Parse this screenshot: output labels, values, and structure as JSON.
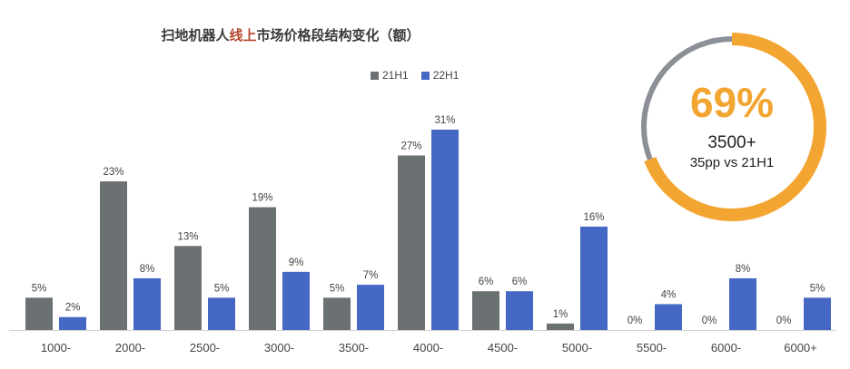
{
  "title_pre": "扫地机器人",
  "title_hl": "线上",
  "title_post": "市场价格段结构变化（额）",
  "colors": {
    "s21": "#6b7173",
    "s22": "#4468c4",
    "accent": "#f3a531",
    "ring_bg": "#8b9097",
    "title_hl": "#b5472b"
  },
  "callout": {
    "percent": "69%",
    "line1": "3500+",
    "line2": "35pp vs 21H1",
    "fraction": 0.69
  },
  "chart_data": {
    "type": "bar",
    "categories": [
      "1000-",
      "2000-",
      "2500-",
      "3000-",
      "3500-",
      "4000-",
      "4500-",
      "5000-",
      "5500-",
      "6000-",
      "6000+"
    ],
    "series": [
      {
        "name": "21H1",
        "values": [
          5,
          23,
          13,
          19,
          5,
          27,
          6,
          1,
          0,
          0,
          0
        ]
      },
      {
        "name": "22H1",
        "values": [
          2,
          8,
          5,
          9,
          7,
          31,
          6,
          16,
          4,
          8,
          5
        ]
      }
    ],
    "labels_21": [
      "5%",
      "23%",
      "13%",
      "19%",
      "5%",
      "27%",
      "6%",
      "1%",
      "0%",
      "0%",
      "0%"
    ],
    "labels_22": [
      "2%",
      "8%",
      "5%",
      "9%",
      "7%",
      "31%",
      "6%",
      "16%",
      "4%",
      "8%",
      "5%"
    ],
    "ylim": [
      0,
      31
    ],
    "unit": "%",
    "legend_position": "top-center"
  }
}
